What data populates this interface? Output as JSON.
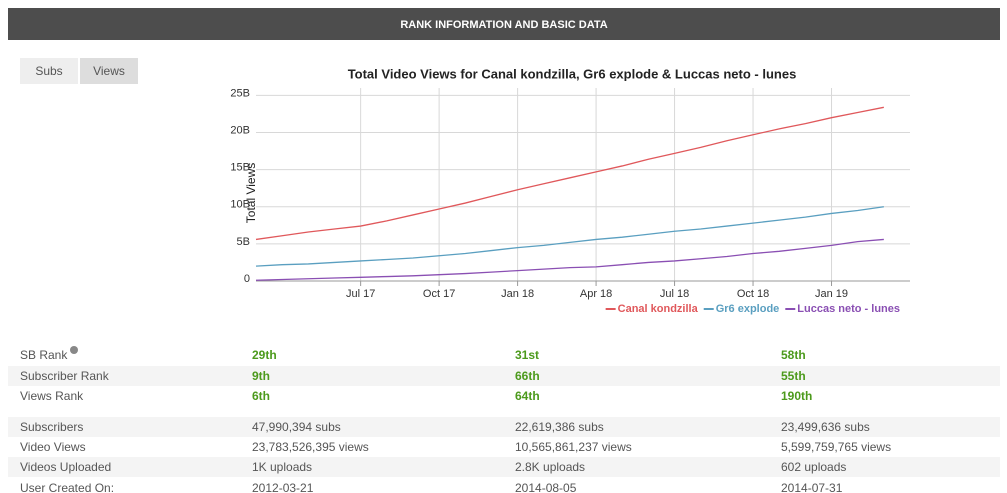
{
  "header": {
    "title": "RANK INFORMATION AND BASIC DATA"
  },
  "buttons": [
    "Subs",
    "Views"
  ],
  "chart_data": {
    "type": "line",
    "title": "Total Video Views for Canal kondzilla, Gr6 explode & Luccas neto - lunes",
    "y_label": "Total Views",
    "x": [
      "2017-03",
      "2017-04",
      "2017-05",
      "2017-06",
      "2017-07",
      "2017-08",
      "2017-09",
      "2017-10",
      "2017-11",
      "2017-12",
      "2018-01",
      "2018-02",
      "2018-03",
      "2018-04",
      "2018-05",
      "2018-06",
      "2018-07",
      "2018-08",
      "2018-09",
      "2018-10",
      "2018-11",
      "2018-12",
      "2019-01",
      "2019-02",
      "2019-03"
    ],
    "series": [
      {
        "name": "Canal kondzilla",
        "color": "#e0585b",
        "values": [
          5600000000.0,
          6100000000.0,
          6600000000.0,
          7000000000.0,
          7400000000.0,
          8100000000.0,
          8900000000.0,
          9700000000.0,
          10500000000.0,
          11400000000.0,
          12300000000.0,
          13100000000.0,
          13900000000.0,
          14700000000.0,
          15500000000.0,
          16400000000.0,
          17200000000.0,
          18000000000.0,
          18900000000.0,
          19700000000.0,
          20500000000.0,
          21200000000.0,
          22000000000.0,
          22700000000.0,
          23400000000.0
        ]
      },
      {
        "name": "Gr6 explode",
        "color": "#5a9fc0",
        "values": [
          2000000000.0,
          2200000000.0,
          2300000000.0,
          2500000000.0,
          2700000000.0,
          2900000000.0,
          3100000000.0,
          3400000000.0,
          3700000000.0,
          4100000000.0,
          4500000000.0,
          4800000000.0,
          5200000000.0,
          5600000000.0,
          5900000000.0,
          6300000000.0,
          6700000000.0,
          7000000000.0,
          7400000000.0,
          7800000000.0,
          8200000000.0,
          8600000000.0,
          9100000000.0,
          9500000000.0,
          10000000000.0
        ]
      },
      {
        "name": "Luccas neto - lunes",
        "color": "#8a4fb3",
        "values": [
          100000000.0,
          200000000.0,
          300000000.0,
          400000000.0,
          500000000.0,
          600000000.0,
          700000000.0,
          850000000.0,
          1000000000.0,
          1200000000.0,
          1400000000.0,
          1600000000.0,
          1800000000.0,
          1900000000.0,
          2200000000.0,
          2500000000.0,
          2700000000.0,
          3000000000.0,
          3300000000.0,
          3700000000.0,
          4000000000.0,
          4400000000.0,
          4800000000.0,
          5300000000.0,
          5600000000.0
        ]
      }
    ],
    "xlim": [
      "2017-03",
      "2019-04"
    ],
    "xticks": [
      {
        "value": "2017-07",
        "label": "Jul 17"
      },
      {
        "value": "2017-10",
        "label": "Oct 17"
      },
      {
        "value": "2018-01",
        "label": "Jan 18"
      },
      {
        "value": "2018-04",
        "label": "Apr 18"
      },
      {
        "value": "2018-07",
        "label": "Jul 18"
      },
      {
        "value": "2018-10",
        "label": "Oct 18"
      },
      {
        "value": "2019-01",
        "label": "Jan 19"
      }
    ],
    "ylim": [
      0,
      26000000000.0
    ],
    "yticks": [
      0,
      {
        "value": 5000000000.0,
        "label": "5B"
      },
      {
        "value": 10000000000.0,
        "label": "10B"
      },
      {
        "value": 15000000000.0,
        "label": "15B"
      },
      {
        "value": 20000000000.0,
        "label": "20B"
      },
      {
        "value": 25000000000.0,
        "label": "25B"
      }
    ],
    "grid": true,
    "legend": "bottom-right"
  },
  "table": {
    "rows": [
      [
        "SB Rank",
        "29th",
        "31st",
        "58th"
      ],
      [
        "Subscriber Rank",
        "9th",
        "66th",
        "55th"
      ],
      [
        "Views Rank",
        "6th",
        "64th",
        "190th"
      ],
      [
        "Subscribers",
        "47,990,394 subs",
        "22,619,386 subs",
        "23,499,636 subs"
      ],
      [
        "Video Views",
        "23,783,526,395 views",
        "10,565,861,237 views",
        "5,599,759,765 views"
      ],
      [
        "Videos Uploaded",
        "1K uploads",
        "2.8K uploads",
        "602 uploads"
      ],
      [
        "User Created On:",
        "2012-03-21",
        "2014-08-05",
        "2014-07-31"
      ]
    ]
  }
}
